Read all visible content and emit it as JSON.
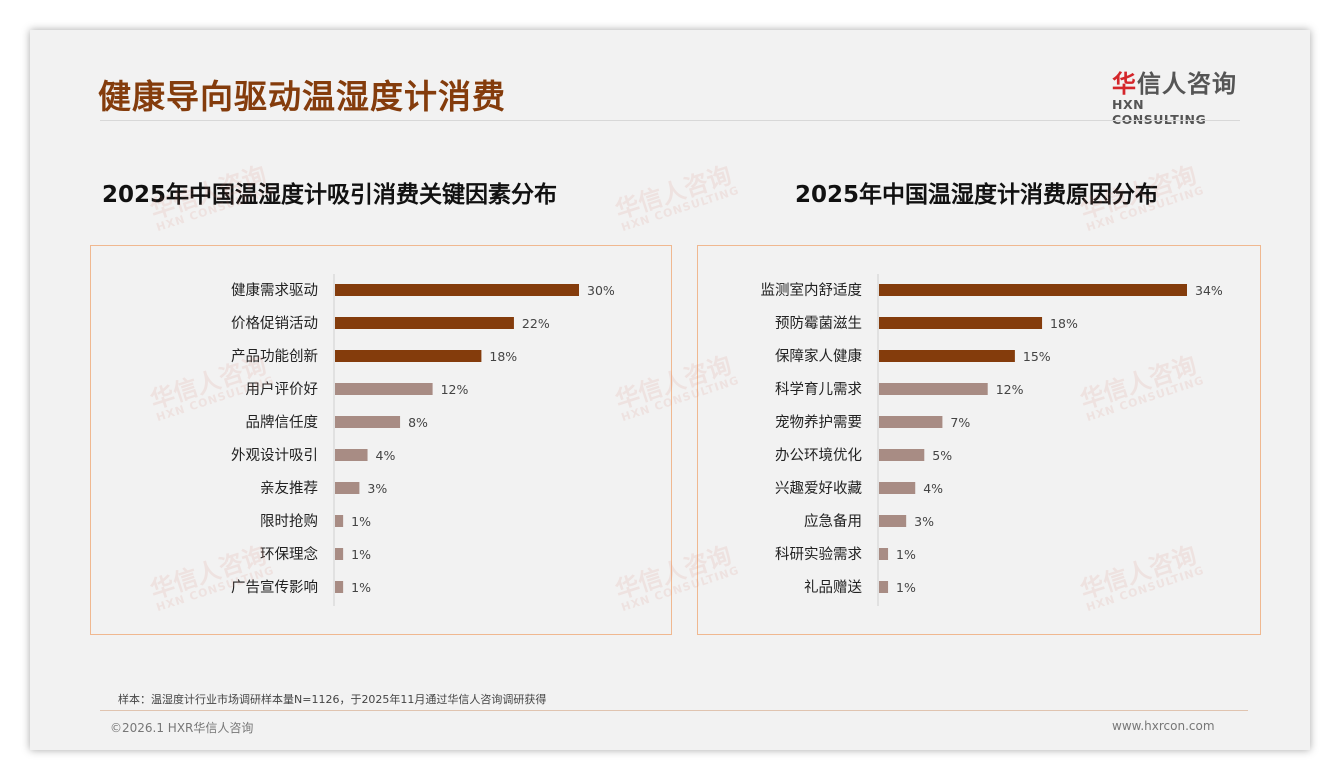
{
  "header": {
    "title": "健康导向驱动温湿度计消费"
  },
  "logo": {
    "cn_red": "华",
    "cn_rest": "信人咨询",
    "en": "HXN CONSULTING"
  },
  "watermark": {
    "cn": "华信人咨询",
    "en": "HXN CONSULTING"
  },
  "colors": {
    "primary": "#843C0C",
    "secondary": "#A88C84"
  },
  "chart_data": [
    {
      "type": "bar",
      "orientation": "horizontal",
      "title": "2025年中国温湿度计吸引消费关键因素分布",
      "categories": [
        "健康需求驱动",
        "价格促销活动",
        "产品功能创新",
        "用户评价好",
        "品牌信任度",
        "外观设计吸引",
        "亲友推荐",
        "限时抢购",
        "环保理念",
        "广告宣传影响"
      ],
      "values": [
        30,
        22,
        18,
        12,
        8,
        4,
        3,
        1,
        1,
        1
      ],
      "unit": "%",
      "highlight_top": 3,
      "xlim": [
        0,
        30
      ]
    },
    {
      "type": "bar",
      "orientation": "horizontal",
      "title": "2025年中国温湿度计消费原因分布",
      "categories": [
        "监测室内舒适度",
        "预防霉菌滋生",
        "保障家人健康",
        "科学育儿需求",
        "宠物养护需要",
        "办公环境优化",
        "兴趣爱好收藏",
        "应急备用",
        "科研实验需求",
        "礼品赠送"
      ],
      "values": [
        34,
        18,
        15,
        12,
        7,
        5,
        4,
        3,
        1,
        1
      ],
      "unit": "%",
      "highlight_top": 3,
      "xlim": [
        0,
        34
      ]
    }
  ],
  "footer": {
    "note": "样本：温湿度计行业市场调研样本量N=1126，于2025年11月通过华信人咨询调研获得",
    "copyright": "©2026.1 HXR华信人咨询",
    "website": "www.hxrcon.com"
  }
}
